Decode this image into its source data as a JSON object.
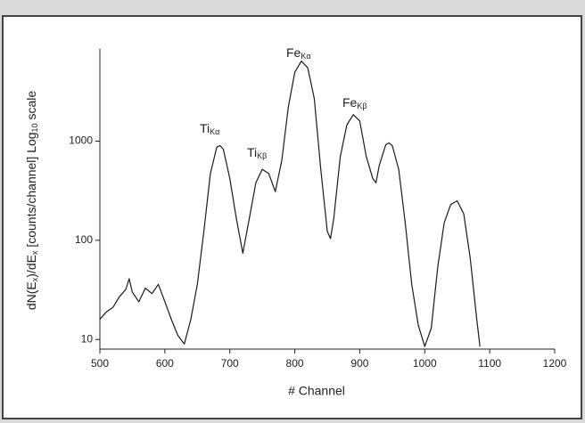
{
  "chart_data": {
    "type": "line",
    "xlabel": "# Channel",
    "ylabel": [
      {
        "text": "dN(E"
      },
      {
        "text": "x",
        "sub": true
      },
      {
        "text": ")/dE"
      },
      {
        "text": "x",
        "sub": true
      },
      {
        "text": " [counts/channel] Log"
      },
      {
        "text": "10",
        "sub": true
      },
      {
        "text": " scale"
      }
    ],
    "annotations": [
      {
        "text": "Ti",
        "sub": "Kα"
      },
      {
        "text": "Ti",
        "sub": "Kβ"
      },
      {
        "text": "Fe",
        "sub": "Kα"
      },
      {
        "text": "Fe",
        "sub": "Kβ"
      }
    ],
    "x": [
      500,
      510,
      520,
      530,
      540,
      545,
      550,
      560,
      570,
      580,
      590,
      600,
      610,
      620,
      630,
      640,
      650,
      660,
      670,
      680,
      685,
      690,
      700,
      710,
      720,
      730,
      740,
      750,
      760,
      770,
      780,
      790,
      800,
      810,
      820,
      830,
      840,
      850,
      855,
      860,
      870,
      880,
      890,
      900,
      910,
      920,
      925,
      930,
      940,
      945,
      950,
      960,
      970,
      980,
      990,
      1000,
      1010,
      1020,
      1030,
      1040,
      1050,
      1060,
      1070,
      1080,
      1085
    ],
    "values": [
      16,
      19,
      21,
      27,
      32,
      41,
      30,
      24,
      33,
      29,
      36,
      24,
      16,
      11,
      9,
      16,
      36,
      123,
      470,
      870,
      900,
      830,
      420,
      167,
      74,
      167,
      380,
      520,
      470,
      310,
      640,
      2200,
      4960,
      6400,
      5500,
      2700,
      520,
      123,
      104,
      167,
      700,
      1450,
      1850,
      1600,
      700,
      420,
      380,
      570,
      920,
      960,
      900,
      520,
      150,
      36,
      14,
      8.5,
      13,
      54,
      150,
      230,
      250,
      185,
      66,
      16,
      8.5
    ],
    "color": "#1a1a1a",
    "xlim": [
      500,
      1200
    ],
    "xticks": [
      500,
      600,
      700,
      800,
      900,
      1000,
      1100,
      1200
    ],
    "ylim": [
      8,
      8500
    ],
    "yticks": [
      10,
      100,
      1000
    ],
    "log_y": true,
    "grid": false
  }
}
